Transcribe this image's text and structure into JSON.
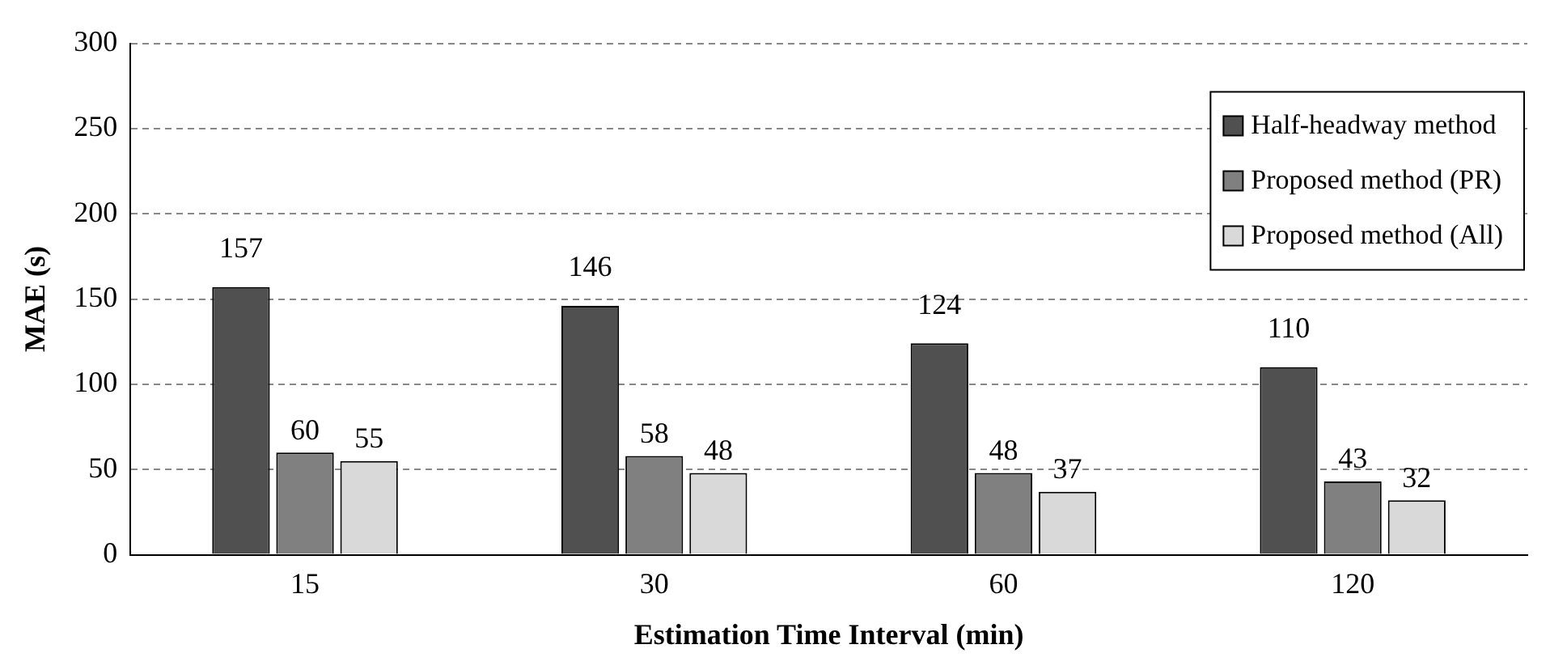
{
  "chart_data": {
    "type": "bar",
    "xlabel": "Estimation Time Interval (min)",
    "ylabel": "MAE (s)",
    "categories": [
      "15",
      "30",
      "60",
      "120"
    ],
    "series": [
      {
        "name": "Half-headway method",
        "color": "#505050",
        "values": [
          157,
          146,
          124,
          110
        ]
      },
      {
        "name": "Proposed method (PR)",
        "color": "#808080",
        "values": [
          60,
          58,
          48,
          43
        ]
      },
      {
        "name": "Proposed method (All)",
        "color": "#d9d9d9",
        "values": [
          55,
          48,
          37,
          32
        ]
      }
    ],
    "ylim": [
      0,
      300
    ],
    "yticks": [
      0,
      50,
      100,
      150,
      200,
      250,
      300
    ],
    "grid": "y",
    "legend": "top right",
    "data_labels": true
  }
}
